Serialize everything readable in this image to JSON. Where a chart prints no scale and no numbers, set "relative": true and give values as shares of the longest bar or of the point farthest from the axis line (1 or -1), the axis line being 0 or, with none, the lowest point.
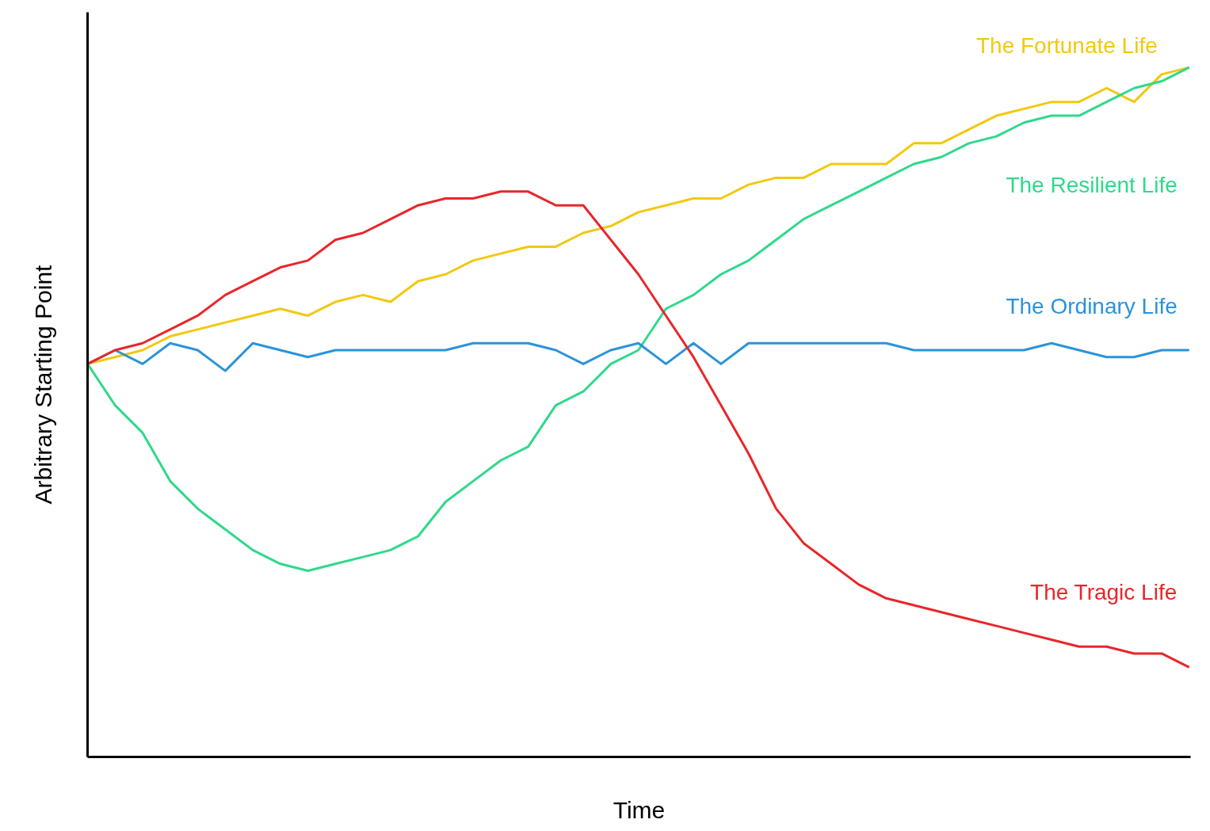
{
  "chart_data": {
    "type": "line",
    "relative": true,
    "xlabel": "Time",
    "ylabel": "Arbitrary Starting Point",
    "tick_labels": false,
    "marker": "none",
    "line_style": "solid",
    "categories": [
      null,
      null,
      null,
      null,
      null,
      null,
      null,
      null,
      null,
      null,
      null,
      null,
      null,
      null,
      null,
      null,
      null,
      null,
      null,
      null,
      null,
      null,
      null,
      null,
      null,
      null,
      null,
      null,
      null,
      null,
      null,
      null,
      null,
      null,
      null,
      null,
      null,
      null,
      null,
      null,
      null
    ],
    "series": [
      {
        "name": "The Fortunate Life",
        "color": "#f2c811",
        "values": [
          0.57,
          0.58,
          0.59,
          0.61,
          0.62,
          0.63,
          0.64,
          0.65,
          0.64,
          0.66,
          0.67,
          0.66,
          0.69,
          0.7,
          0.72,
          0.73,
          0.74,
          0.74,
          0.76,
          0.77,
          0.79,
          0.8,
          0.81,
          0.81,
          0.83,
          0.84,
          0.84,
          0.86,
          0.86,
          0.86,
          0.89,
          0.89,
          0.91,
          0.93,
          0.94,
          0.95,
          0.95,
          0.97,
          0.95,
          0.99,
          1.0
        ]
      },
      {
        "name": "The Resilient Life",
        "color": "#2fd98b",
        "values": [
          0.57,
          0.51,
          0.47,
          0.4,
          0.36,
          0.33,
          0.3,
          0.28,
          0.27,
          0.28,
          0.29,
          0.3,
          0.32,
          0.37,
          0.4,
          0.43,
          0.45,
          0.51,
          0.53,
          0.57,
          0.59,
          0.65,
          0.67,
          0.7,
          0.72,
          0.75,
          0.78,
          0.8,
          0.82,
          0.84,
          0.86,
          0.87,
          0.89,
          0.9,
          0.92,
          0.93,
          0.93,
          0.95,
          0.97,
          0.98,
          1.0
        ]
      },
      {
        "name": "The Ordinary Life",
        "color": "#2b93d9",
        "values": [
          0.57,
          0.59,
          0.57,
          0.6,
          0.59,
          0.56,
          0.6,
          0.59,
          0.58,
          0.59,
          0.59,
          0.59,
          0.59,
          0.59,
          0.6,
          0.6,
          0.6,
          0.59,
          0.57,
          0.59,
          0.6,
          0.57,
          0.6,
          0.57,
          0.6,
          0.6,
          0.6,
          0.6,
          0.6,
          0.6,
          0.59,
          0.59,
          0.59,
          0.59,
          0.59,
          0.6,
          0.59,
          0.58,
          0.58,
          0.59,
          0.59
        ]
      },
      {
        "name": "The Tragic Life",
        "color": "#e8262a",
        "values": [
          0.57,
          0.59,
          0.6,
          0.62,
          0.64,
          0.67,
          0.69,
          0.71,
          0.72,
          0.75,
          0.76,
          0.78,
          0.8,
          0.81,
          0.81,
          0.82,
          0.82,
          0.8,
          0.8,
          0.75,
          0.7,
          0.64,
          0.58,
          0.51,
          0.44,
          0.36,
          0.31,
          0.28,
          0.25,
          0.23,
          0.22,
          0.21,
          0.2,
          0.19,
          0.18,
          0.17,
          0.16,
          0.16,
          0.15,
          0.15,
          0.13
        ]
      }
    ]
  }
}
